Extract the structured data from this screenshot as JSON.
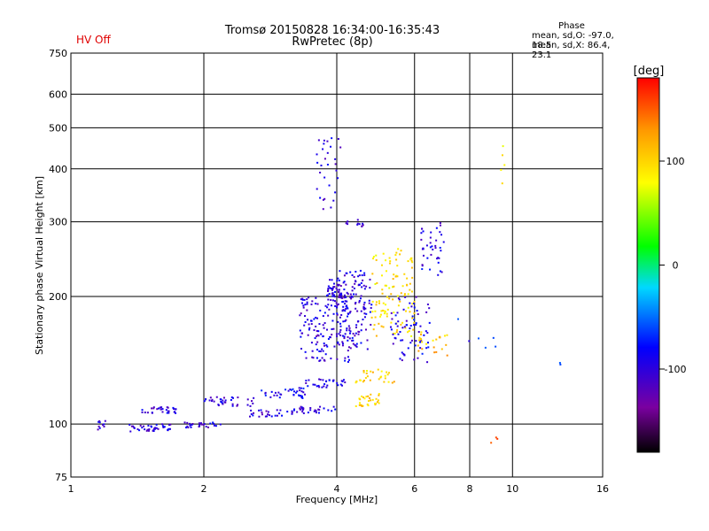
{
  "header": {
    "title_line1": "Tromsø 20150828 16:34:00-16:35:43",
    "title_line2": "RwPretec (8p)",
    "hv_status": "HV Off",
    "phase_title": "Phase",
    "phase_line1": "mean, sd,O: -97.0, 18.5",
    "phase_line2": "mean, sd,X:  86.4, 23.1"
  },
  "colors": {
    "hv_status": "#e00000",
    "dominant": "#1a1aff"
  },
  "chart_data": {
    "type": "scatter",
    "title": "Tromsø 20150828 16:34:00-16:35:43",
    "xlabel": "Frequency [MHz]",
    "ylabel": "Stationary phase Virtual Height [km]",
    "xscale": "log",
    "yscale": "log",
    "xlim": [
      1,
      16
    ],
    "ylim": [
      75,
      750
    ],
    "grid": true,
    "xticks": [
      {
        "v": 1,
        "label": "1"
      },
      {
        "v": 2,
        "label": "2"
      },
      {
        "v": 4,
        "label": "4"
      },
      {
        "v": 6,
        "label": "6"
      },
      {
        "v": 8,
        "label": "8"
      },
      {
        "v": 10,
        "label": "10"
      },
      {
        "v": 16,
        "label": "16"
      }
    ],
    "yticks": [
      {
        "v": 75,
        "label": "75"
      },
      {
        "v": 100,
        "label": "100"
      },
      {
        "v": 200,
        "label": "200"
      },
      {
        "v": 300,
        "label": "300"
      },
      {
        "v": 400,
        "label": "400"
      },
      {
        "v": 500,
        "label": "500"
      },
      {
        "v": 600,
        "label": "600"
      },
      {
        "v": 750,
        "label": "750"
      }
    ],
    "colorbar": {
      "label": "[deg]",
      "range": [
        -180,
        180
      ],
      "ticks": [
        {
          "v": 100,
          "label": "100"
        },
        {
          "v": 0,
          "label": "0"
        },
        {
          "v": -100,
          "label": "-100"
        }
      ]
    },
    "clusters": [
      {
        "f": [
          1.15,
          1.2
        ],
        "h": [
          97,
          102
        ],
        "phase": -100,
        "n": 10
      },
      {
        "f": [
          1.35,
          1.7
        ],
        "h": [
          96,
          100
        ],
        "phase": -100,
        "n": 38
      },
      {
        "f": [
          1.45,
          1.75
        ],
        "h": [
          106,
          110
        ],
        "phase": -100,
        "n": 30
      },
      {
        "f": [
          1.8,
          2.2
        ],
        "h": [
          98,
          101
        ],
        "phase": -100,
        "n": 26
      },
      {
        "f": [
          2.0,
          2.6
        ],
        "h": [
          110,
          116
        ],
        "phase": -100,
        "n": 36
      },
      {
        "f": [
          2.5,
          3.2
        ],
        "h": [
          104,
          108
        ],
        "phase": -100,
        "n": 28
      },
      {
        "f": [
          2.7,
          3.4
        ],
        "h": [
          115,
          122
        ],
        "phase": -90,
        "n": 36
      },
      {
        "f": [
          3.2,
          4.0
        ],
        "h": [
          106,
          110
        ],
        "phase": -100,
        "n": 30
      },
      {
        "f": [
          3.4,
          4.2
        ],
        "h": [
          122,
          128
        ],
        "phase": -95,
        "n": 32
      },
      {
        "f": [
          3.3,
          4.3
        ],
        "h": [
          140,
          200
        ],
        "phase": -100,
        "n": 150
      },
      {
        "f": [
          3.8,
          4.1
        ],
        "h": [
          200,
          220
        ],
        "phase": -100,
        "n": 40
      },
      {
        "f": [
          3.6,
          4.1
        ],
        "h": [
          320,
          480
        ],
        "phase": -100,
        "n": 30
      },
      {
        "f": [
          4.0,
          4.8
        ],
        "h": [
          150,
          230
        ],
        "phase": -100,
        "n": 130
      },
      {
        "f": [
          4.2,
          4.6
        ],
        "h": [
          290,
          305
        ],
        "phase": -100,
        "n": 12
      },
      {
        "f": [
          4.4,
          5.0
        ],
        "h": [
          110,
          118
        ],
        "phase": 100,
        "n": 30
      },
      {
        "f": [
          4.4,
          5.4
        ],
        "h": [
          125,
          135
        ],
        "phase": 100,
        "n": 30
      },
      {
        "f": [
          4.8,
          6.0
        ],
        "h": [
          160,
          260
        ],
        "phase": 95,
        "n": 110
      },
      {
        "f": [
          5.2,
          6.5
        ],
        "h": [
          140,
          200
        ],
        "phase": -95,
        "n": 70
      },
      {
        "f": [
          6.2,
          7.0
        ],
        "h": [
          220,
          300
        ],
        "phase": -95,
        "n": 40
      },
      {
        "f": [
          6.0,
          7.2
        ],
        "h": [
          145,
          165
        ],
        "phase": 110,
        "n": 24
      },
      {
        "f": [
          7.5,
          9.5
        ],
        "h": [
          150,
          180
        ],
        "phase": -80,
        "n": 6
      },
      {
        "f": [
          9.4,
          9.6
        ],
        "h": [
          360,
          480
        ],
        "phase": 80,
        "n": 5
      },
      {
        "f": [
          8.5,
          9.5
        ],
        "h": [
          88,
          95
        ],
        "phase": 140,
        "n": 3
      },
      {
        "f": [
          12.5,
          13.0
        ],
        "h": [
          136,
          140
        ],
        "phase": -80,
        "n": 2
      }
    ]
  }
}
